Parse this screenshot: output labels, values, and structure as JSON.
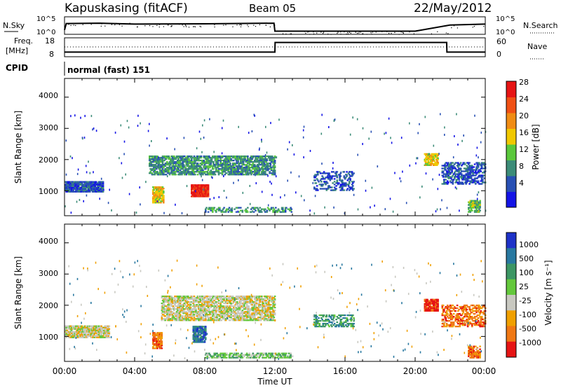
{
  "header": {
    "site": "Kapuskasing (fitACF)",
    "beam": "Beam 05",
    "date": "22/May/2012"
  },
  "noise_panel": {
    "left_label": "N.Sky",
    "right_label": "N.Search",
    "left_ticks": [
      "10^5",
      "10^0"
    ],
    "right_ticks": [
      "10^5",
      "10^0"
    ]
  },
  "freq_panel": {
    "left_label_1": "Freq.",
    "left_label_2": "[MHz]",
    "right_label": "Nave",
    "left_ticks": [
      "18",
      "8"
    ],
    "right_ticks": [
      "60",
      "0"
    ]
  },
  "cpid": {
    "label": "CPID",
    "value": "normal (fast) 151"
  },
  "x_axis": {
    "label": "Time UT",
    "ticks": [
      "00:00",
      "04:00",
      "08:00",
      "12:00",
      "16:00",
      "20:00",
      "00:00"
    ]
  },
  "power_panel": {
    "ylabel": "Slant Range [km]",
    "yticks": [
      "1000",
      "2000",
      "3000",
      "4000"
    ],
    "colorbar_label": "Power [dB]",
    "colorbar_ticks": [
      "4",
      "8",
      "12",
      "16",
      "20",
      "24",
      "28"
    ],
    "colors": [
      "#1414e6",
      "#2850b4",
      "#3c8c78",
      "#5ac83c",
      "#f0c800",
      "#f08c14",
      "#f05014",
      "#e61414"
    ]
  },
  "velocity_panel": {
    "ylabel": "Slant Range [km]",
    "yticks": [
      "1000",
      "2000",
      "3000",
      "4000"
    ],
    "colorbar_label": "Velocity [m s⁻¹]",
    "colorbar_ticks": [
      "1000",
      "500",
      "100",
      "25",
      "-25",
      "-100",
      "-500",
      "-1000"
    ],
    "colors": [
      "#1e32c8",
      "#2878a0",
      "#3c9664",
      "#64c83c",
      "#c8c8c0",
      "#f0a000",
      "#f07814",
      "#e61414"
    ]
  },
  "chart_data": [
    {
      "type": "line",
      "title": "N.Sky / N.Search",
      "x_hours": [
        0,
        0.1,
        2,
        4,
        8,
        11.95,
        12,
        16,
        20,
        22,
        24
      ],
      "series": [
        {
          "name": "N.Sky",
          "values": [
            1,
            3.2,
            3.3,
            3.0,
            3.1,
            3.3,
            0.6,
            0.6,
            0.6,
            2.7,
            3.0
          ]
        }
      ],
      "ylim": [
        0,
        5
      ]
    },
    {
      "type": "line",
      "title": "Freq. / Nave",
      "x_hours": [
        0,
        12,
        12.01,
        21.8,
        21.81,
        24
      ],
      "series": [
        {
          "name": "Freq.",
          "values": [
            10,
            10,
            16,
            16,
            10,
            10
          ]
        }
      ],
      "ylim": [
        8,
        18
      ]
    },
    {
      "type": "heatmap",
      "title": "Power",
      "xlabel": "Time UT",
      "ylabel": "Slant Range [km]",
      "xlim": [
        0,
        24
      ],
      "ylim": [
        200,
        4600
      ],
      "zlim": [
        0,
        30
      ],
      "regions": [
        {
          "t0": 0.0,
          "t1": 2.2,
          "r0": 950,
          "r1": 1300,
          "level": 1,
          "density": 0.8
        },
        {
          "t0": 4.8,
          "t1": 12.0,
          "r0": 1500,
          "r1": 2100,
          "level": 2,
          "density": 0.6
        },
        {
          "t0": 7.2,
          "t1": 8.2,
          "r0": 800,
          "r1": 1200,
          "level": 7,
          "density": 0.9
        },
        {
          "t0": 5.0,
          "t1": 5.6,
          "r0": 600,
          "r1": 1100,
          "level": 4,
          "density": 0.7
        },
        {
          "t0": 14.2,
          "t1": 16.5,
          "r0": 1000,
          "r1": 1600,
          "level": 1,
          "density": 0.3
        },
        {
          "t0": 20.5,
          "t1": 21.3,
          "r0": 1800,
          "r1": 2200,
          "level": 4,
          "density": 0.7
        },
        {
          "t0": 21.5,
          "t1": 24.0,
          "r0": 1200,
          "r1": 1900,
          "level": 1,
          "density": 0.4
        },
        {
          "t0": 23.0,
          "t1": 23.7,
          "r0": 300,
          "r1": 700,
          "level": 3,
          "density": 0.6
        },
        {
          "t0": 8.0,
          "t1": 13.0,
          "r0": 300,
          "r1": 450,
          "level": 2,
          "density": 0.4
        }
      ]
    },
    {
      "type": "heatmap",
      "title": "Velocity",
      "xlabel": "Time UT",
      "ylabel": "Slant Range [km]",
      "xlim": [
        0,
        24
      ],
      "ylim": [
        200,
        4600
      ],
      "zlim": [
        -1000,
        1000
      ],
      "regions": [
        {
          "t0": 0.0,
          "t1": 2.5,
          "r0": 950,
          "r1": 1350,
          "level": 4,
          "density": 0.8
        },
        {
          "t0": 5.5,
          "t1": 12.0,
          "r0": 1500,
          "r1": 2300,
          "level": 4,
          "density": 0.6
        },
        {
          "t0": 7.3,
          "t1": 8.0,
          "r0": 800,
          "r1": 1300,
          "level": 1,
          "density": 0.8
        },
        {
          "t0": 5.0,
          "t1": 5.5,
          "r0": 600,
          "r1": 1100,
          "level": 6,
          "density": 0.7
        },
        {
          "t0": 8.0,
          "t1": 13.0,
          "r0": 300,
          "r1": 450,
          "level": 3,
          "density": 0.5
        },
        {
          "t0": 14.2,
          "t1": 16.5,
          "r0": 1300,
          "r1": 1700,
          "level": 2,
          "density": 0.4
        },
        {
          "t0": 20.5,
          "t1": 21.3,
          "r0": 1800,
          "r1": 2200,
          "level": 7,
          "density": 0.8
        },
        {
          "t0": 21.5,
          "t1": 24.0,
          "r0": 1300,
          "r1": 2000,
          "level": 6,
          "density": 0.4
        },
        {
          "t0": 23.0,
          "t1": 23.7,
          "r0": 300,
          "r1": 700,
          "level": 6,
          "density": 0.6
        }
      ]
    }
  ]
}
